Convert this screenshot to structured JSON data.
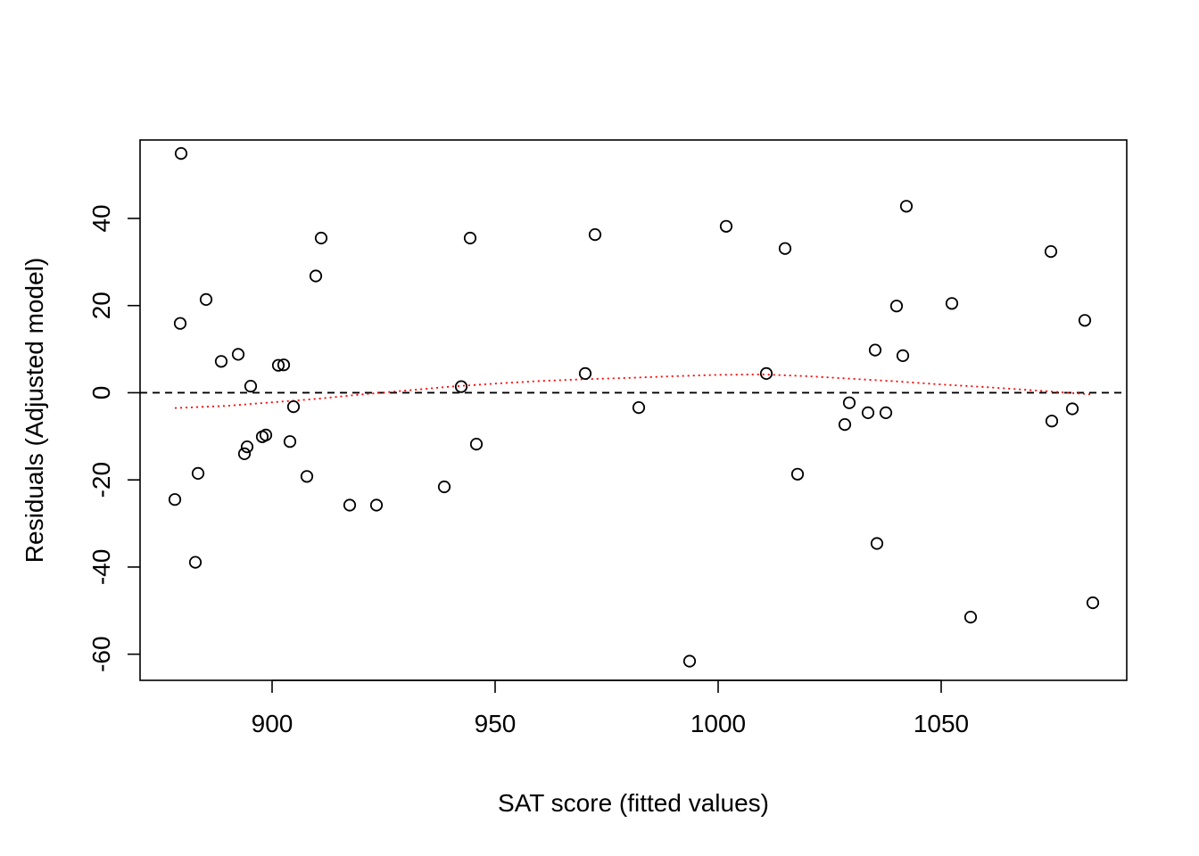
{
  "chart_data": {
    "type": "scatter",
    "title": "",
    "xlabel": "SAT score (fitted values)",
    "ylabel": "Residuals (Adjusted model)",
    "xlim": [
      870.4,
      1091.6
    ],
    "ylim": [
      -66,
      58
    ],
    "x_ticks": [
      900,
      950,
      1000,
      1050
    ],
    "y_ticks": [
      -60,
      -40,
      -20,
      0,
      20,
      40
    ],
    "grid": false,
    "legend": "none",
    "colors": {
      "points": "#000000",
      "reference_line": "#000000",
      "smoother": "#ff0000"
    },
    "reference_line": {
      "y": 0,
      "style": "dashed"
    },
    "points": [
      {
        "x": 879.6,
        "y": 54.9
      },
      {
        "x": 879.4,
        "y": 15.9
      },
      {
        "x": 885.2,
        "y": 21.4
      },
      {
        "x": 878.2,
        "y": -24.5
      },
      {
        "x": 883.4,
        "y": -18.5
      },
      {
        "x": 882.8,
        "y": -38.9
      },
      {
        "x": 888.6,
        "y": 7.2
      },
      {
        "x": 892.4,
        "y": 8.8
      },
      {
        "x": 895.2,
        "y": 1.5
      },
      {
        "x": 893.8,
        "y": -14.0
      },
      {
        "x": 894.4,
        "y": -12.4
      },
      {
        "x": 897.8,
        "y": -10.1
      },
      {
        "x": 898.6,
        "y": -9.7
      },
      {
        "x": 901.4,
        "y": 6.3
      },
      {
        "x": 902.6,
        "y": 6.4
      },
      {
        "x": 904.8,
        "y": -3.2
      },
      {
        "x": 904.0,
        "y": -11.2
      },
      {
        "x": 907.8,
        "y": -19.2
      },
      {
        "x": 909.8,
        "y": 26.8
      },
      {
        "x": 911.0,
        "y": 35.5
      },
      {
        "x": 917.4,
        "y": -25.8
      },
      {
        "x": 923.4,
        "y": -25.8
      },
      {
        "x": 938.6,
        "y": -21.6
      },
      {
        "x": 942.4,
        "y": 1.4
      },
      {
        "x": 944.4,
        "y": 35.5
      },
      {
        "x": 945.8,
        "y": -11.8
      },
      {
        "x": 970.2,
        "y": 4.4
      },
      {
        "x": 972.4,
        "y": 36.3
      },
      {
        "x": 982.2,
        "y": -3.4
      },
      {
        "x": 993.6,
        "y": -61.6
      },
      {
        "x": 1001.8,
        "y": 38.2
      },
      {
        "x": 1010.8,
        "y": 4.4
      },
      {
        "x": 1015.0,
        "y": 33.1
      },
      {
        "x": 1017.8,
        "y": -18.7
      },
      {
        "x": 1028.4,
        "y": -7.3
      },
      {
        "x": 1029.4,
        "y": -2.3
      },
      {
        "x": 1033.6,
        "y": -4.6
      },
      {
        "x": 1035.2,
        "y": 9.8
      },
      {
        "x": 1035.6,
        "y": -34.6
      },
      {
        "x": 1037.6,
        "y": -4.6
      },
      {
        "x": 1040.0,
        "y": 19.9
      },
      {
        "x": 1041.4,
        "y": 8.5
      },
      {
        "x": 1042.2,
        "y": 42.8
      },
      {
        "x": 1052.4,
        "y": 20.5
      },
      {
        "x": 1056.6,
        "y": -51.5
      },
      {
        "x": 1074.6,
        "y": 32.4
      },
      {
        "x": 1074.8,
        "y": -6.5
      },
      {
        "x": 1079.4,
        "y": -3.7
      },
      {
        "x": 1082.2,
        "y": 16.6
      },
      {
        "x": 1084.0,
        "y": -48.2
      }
    ],
    "smoother": [
      {
        "x": 878.2,
        "y": -3.5
      },
      {
        "x": 890,
        "y": -3.0
      },
      {
        "x": 900,
        "y": -2.2
      },
      {
        "x": 910,
        "y": -1.4
      },
      {
        "x": 920,
        "y": -0.4
      },
      {
        "x": 930,
        "y": 0.5
      },
      {
        "x": 940,
        "y": 1.4
      },
      {
        "x": 950,
        "y": 2.1
      },
      {
        "x": 960,
        "y": 2.7
      },
      {
        "x": 970,
        "y": 3.1
      },
      {
        "x": 980,
        "y": 3.4
      },
      {
        "x": 990,
        "y": 3.8
      },
      {
        "x": 1000,
        "y": 4.1
      },
      {
        "x": 1010,
        "y": 4.2
      },
      {
        "x": 1020,
        "y": 3.8
      },
      {
        "x": 1030,
        "y": 3.2
      },
      {
        "x": 1040,
        "y": 2.6
      },
      {
        "x": 1050,
        "y": 1.9
      },
      {
        "x": 1060,
        "y": 1.3
      },
      {
        "x": 1070,
        "y": 0.6
      },
      {
        "x": 1084.0,
        "y": -0.4
      }
    ]
  }
}
